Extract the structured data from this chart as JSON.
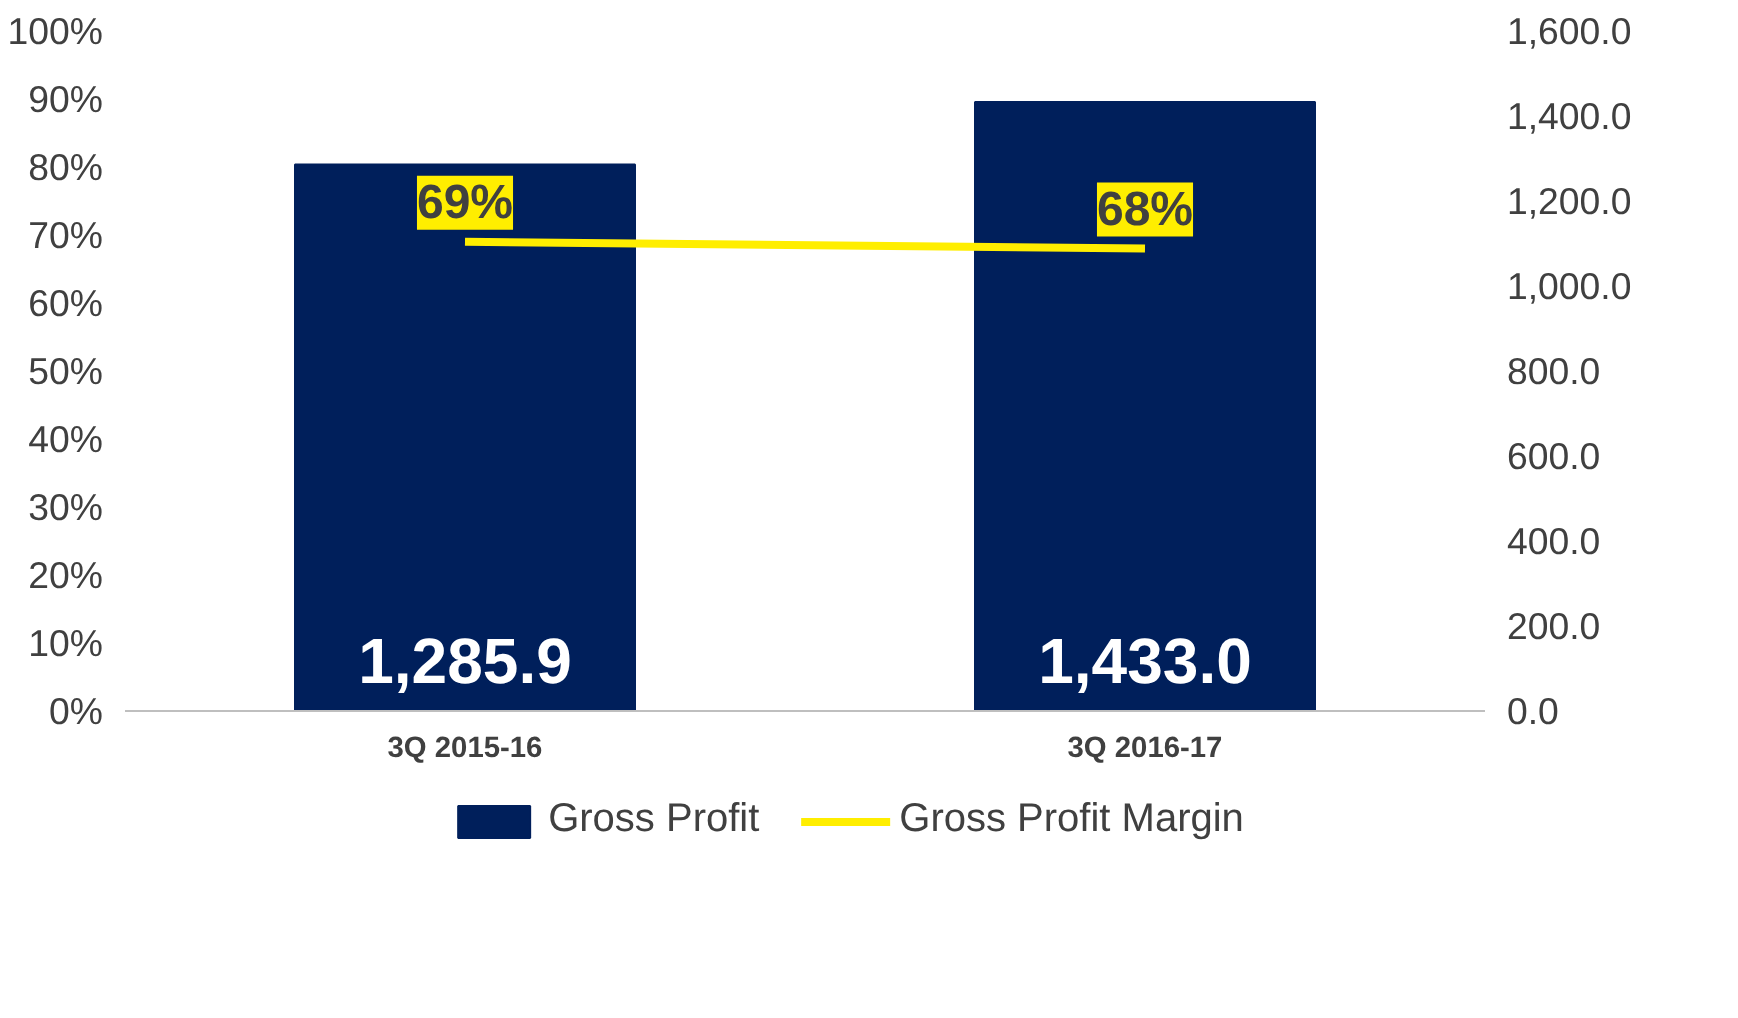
{
  "chart_data": {
    "type": "bar",
    "categories": [
      "3Q 2015-16",
      "3Q 2016-17"
    ],
    "series": [
      {
        "name": "Gross Profit",
        "axis": "y2",
        "color": "#001f5b",
        "values": [
          1285.9,
          1433.0
        ],
        "value_labels": [
          "1,285.9",
          "1,433.0"
        ]
      },
      {
        "name": "Gross Profit Margin",
        "type": "line",
        "axis": "y",
        "color": "#ffee00",
        "values": [
          69,
          68
        ],
        "value_labels": [
          "69%",
          "68%"
        ]
      }
    ],
    "ylim": [
      0,
      100
    ],
    "yticks": [
      {
        "value": 0,
        "label": "0%"
      },
      {
        "value": 10,
        "label": "10%"
      },
      {
        "value": 20,
        "label": "20%"
      },
      {
        "value": 30,
        "label": "30%"
      },
      {
        "value": 40,
        "label": "40%"
      },
      {
        "value": 50,
        "label": "50%"
      },
      {
        "value": 60,
        "label": "60%"
      },
      {
        "value": 70,
        "label": "70%"
      },
      {
        "value": 80,
        "label": "80%"
      },
      {
        "value": 90,
        "label": "90%"
      },
      {
        "value": 100,
        "label": "100%"
      }
    ],
    "y2lim": [
      0,
      1600
    ],
    "y2ticks": [
      {
        "value": 0,
        "label": "0.0"
      },
      {
        "value": 200,
        "label": "200.0"
      },
      {
        "value": 400,
        "label": "400.0"
      },
      {
        "value": 600,
        "label": "600.0"
      },
      {
        "value": 800,
        "label": "800.0"
      },
      {
        "value": 1000,
        "label": "1,000.0"
      },
      {
        "value": 1200,
        "label": "1,200.0"
      },
      {
        "value": 1400,
        "label": "1,400.0"
      },
      {
        "value": 1600,
        "label": "1,600.0"
      }
    ],
    "grid": false,
    "legend": "bottom",
    "marker": "none",
    "line_style": "solid"
  }
}
